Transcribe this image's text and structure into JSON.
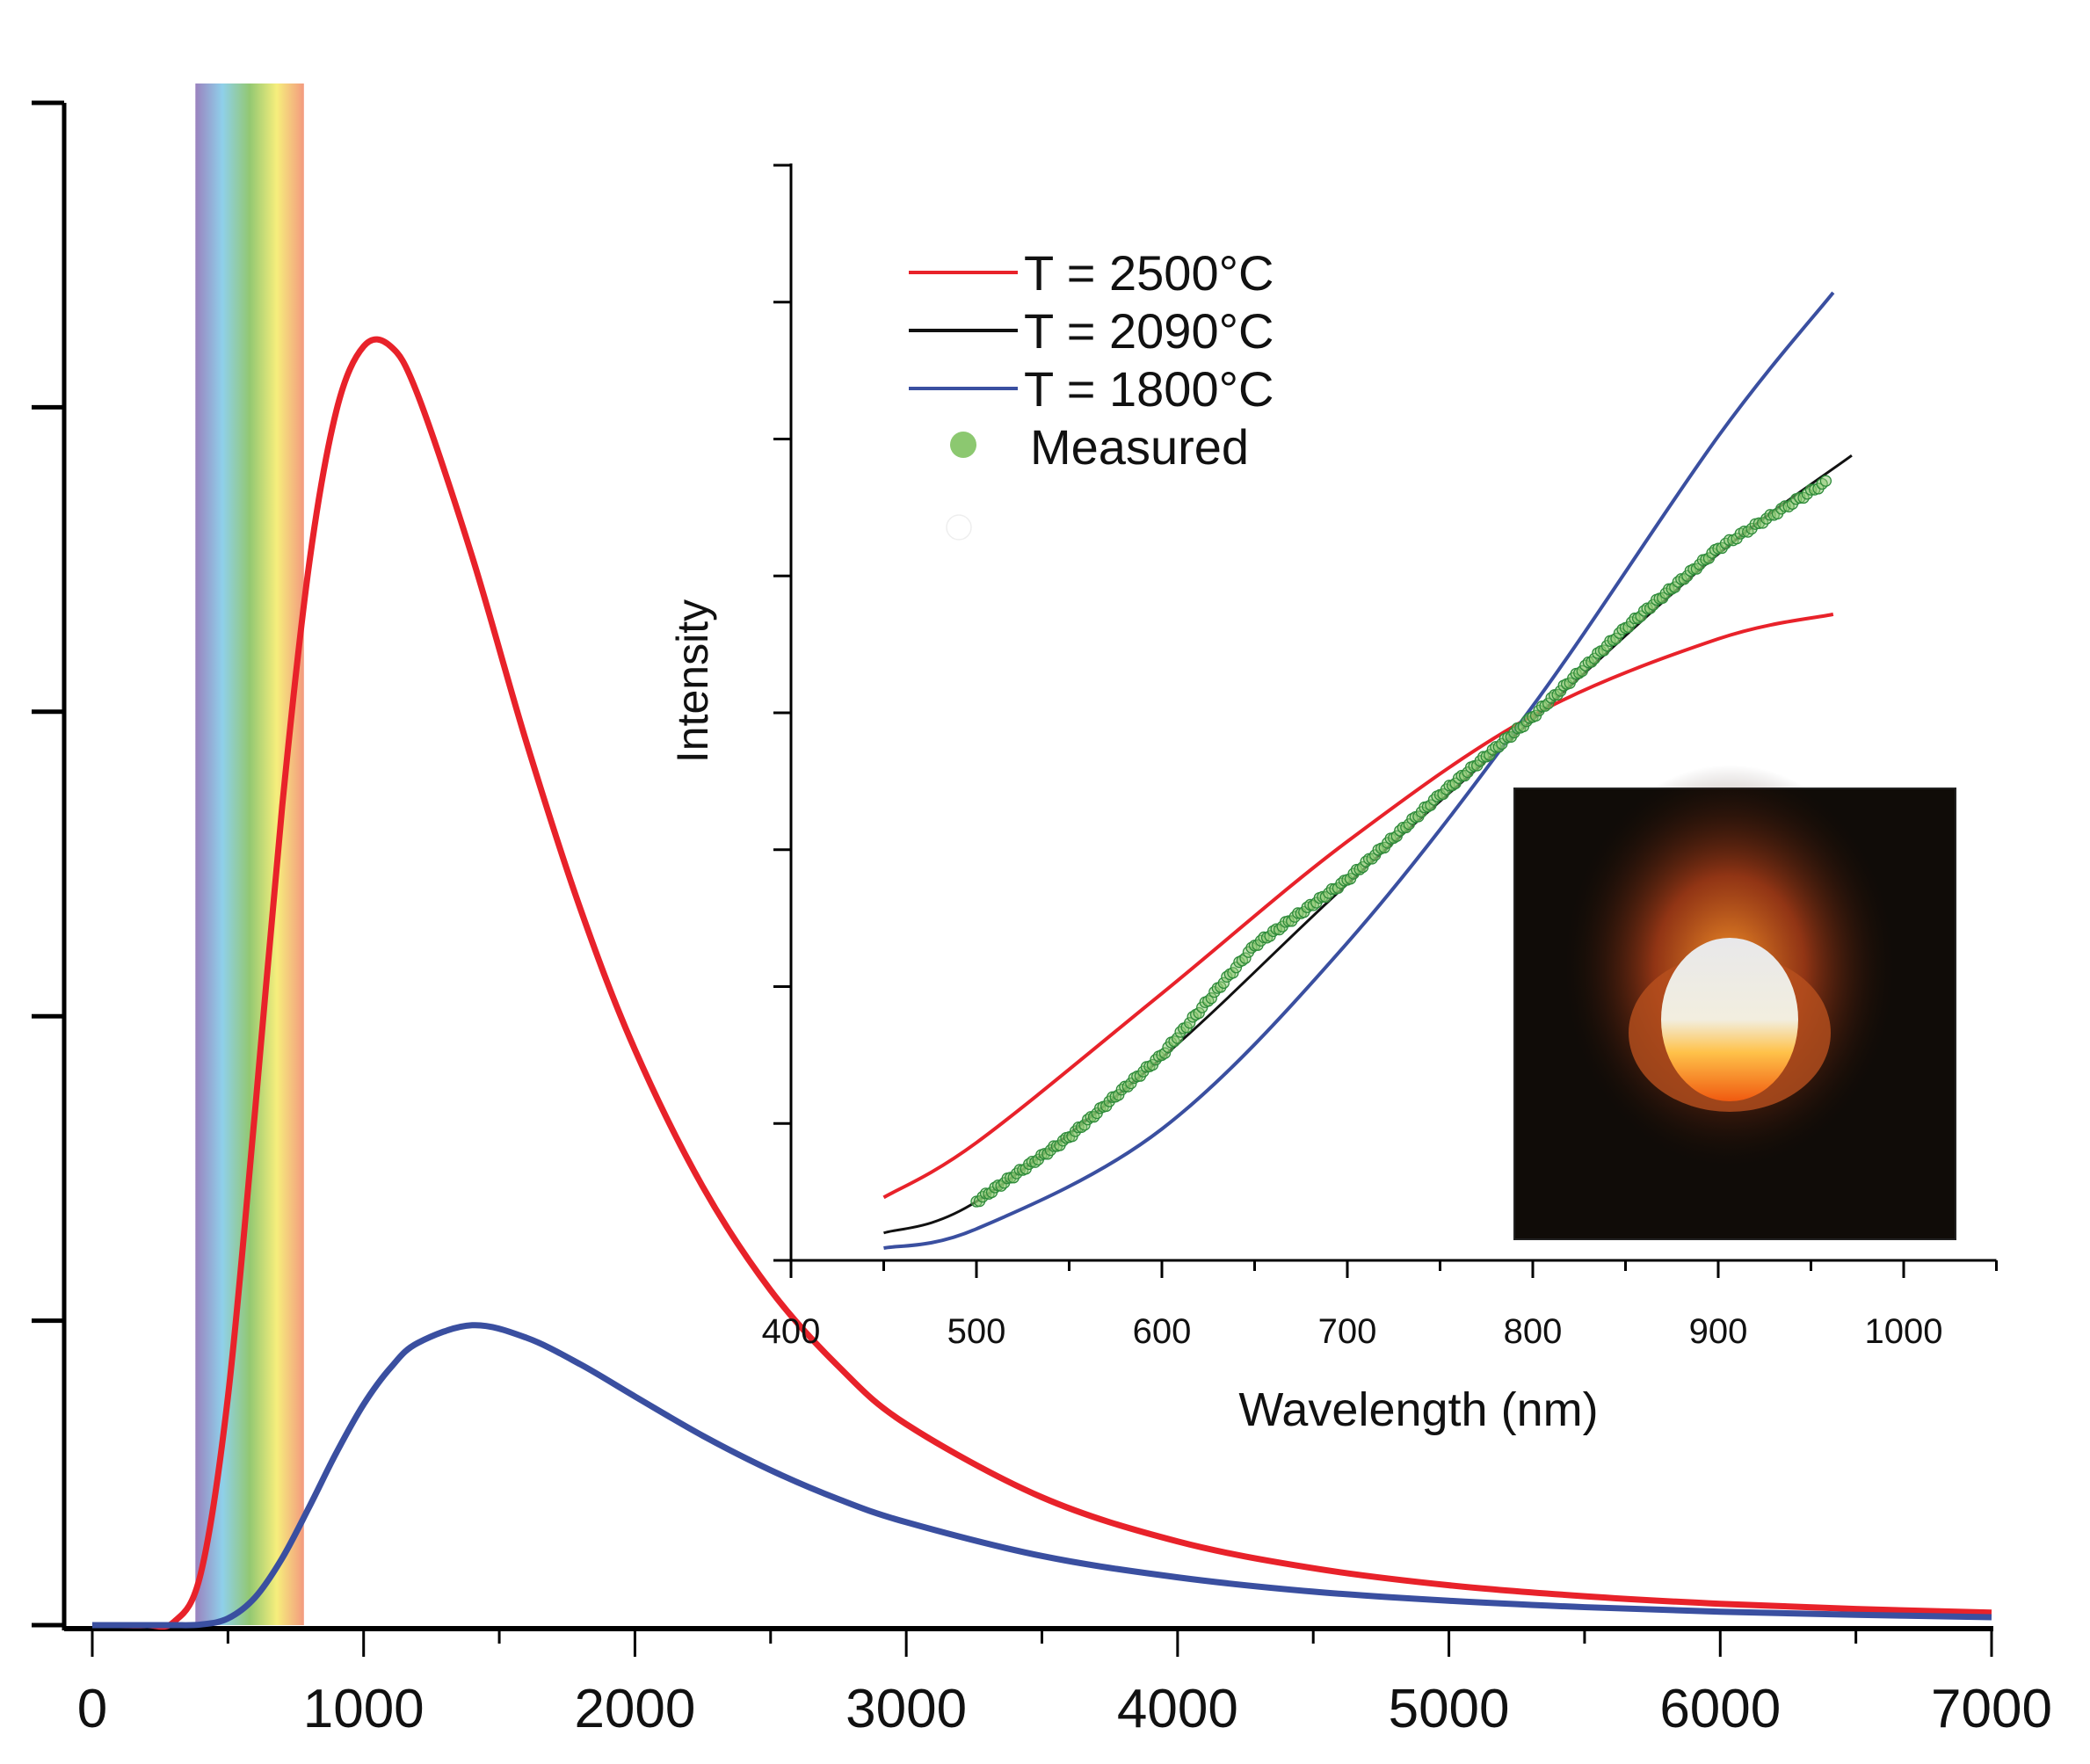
{
  "chart_data": [
    {
      "type": "line",
      "title": "",
      "xlabel": "",
      "ylabel": "",
      "xlim": [
        0,
        7000
      ],
      "ylim": [
        0,
        5
      ],
      "x_ticks": [
        0,
        1000,
        2000,
        3000,
        4000,
        5000,
        6000,
        7000
      ],
      "x_tick_labels": [
        "0",
        "1000",
        "2000",
        "3000",
        "4000",
        "5000",
        "6000",
        "7000"
      ],
      "y_tick_labels_shown": false,
      "visible_band": {
        "range": [
          380,
          780
        ],
        "colors": [
          "#9a82bf",
          "#8fd0ea",
          "#93c872",
          "#f6ee7c",
          "#f39a7f"
        ]
      },
      "series": [
        {
          "color": "#e8222a",
          "x": [
            0,
            100,
            200,
            300,
            400,
            500,
            600,
            700,
            800,
            900,
            1000,
            1100,
            1200,
            1400,
            1600,
            1800,
            2000,
            2250,
            2500,
            2750,
            3000,
            3500,
            4000,
            4500,
            5000,
            5500,
            6000,
            6500,
            7000
          ],
          "y": [
            0,
            0,
            0,
            0.01,
            0.17,
            0.75,
            1.69,
            2.69,
            3.49,
            3.99,
            4.2,
            4.2,
            4.04,
            3.51,
            2.9,
            2.35,
            1.89,
            1.44,
            1.1,
            0.85,
            0.66,
            0.42,
            0.275,
            0.187,
            0.131,
            0.095,
            0.07,
            0.053,
            0.041
          ]
        },
        {
          "color": "#3a4fa0",
          "x": [
            0,
            100,
            200,
            300,
            400,
            500,
            600,
            700,
            800,
            900,
            1000,
            1100,
            1200,
            1400,
            1600,
            1800,
            2000,
            2250,
            2500,
            2750,
            3000,
            3500,
            4000,
            4500,
            5000,
            5500,
            6000,
            6500,
            7000
          ],
          "y": [
            0,
            0,
            0,
            0,
            0.002,
            0.022,
            0.091,
            0.22,
            0.389,
            0.567,
            0.725,
            0.846,
            0.927,
            0.985,
            0.944,
            0.856,
            0.751,
            0.622,
            0.509,
            0.414,
            0.338,
            0.227,
            0.157,
            0.11,
            0.08,
            0.059,
            0.044,
            0.034,
            0.026
          ]
        }
      ]
    },
    {
      "type": "line",
      "title": "",
      "xlabel": "Wavelength (nm)",
      "ylabel": "Intensity",
      "xlim": [
        400,
        1050
      ],
      "ylim": [
        0,
        8
      ],
      "x_ticks": [
        400,
        500,
        600,
        700,
        800,
        900,
        1000
      ],
      "x_tick_labels": [
        "400",
        "500",
        "600",
        "700",
        "800",
        "900",
        "1000"
      ],
      "y_tick_labels_shown": false,
      "legend_position": "top-left",
      "series": [
        {
          "name": "T = 2500°C",
          "color": "#e8222a",
          "x": [
            450,
            500,
            600,
            700,
            800,
            900,
            962
          ],
          "y": [
            0.46,
            0.86,
            1.95,
            3.06,
            3.98,
            4.54,
            4.72
          ]
        },
        {
          "name": "T = 2090°C",
          "color": "#111111",
          "x": [
            450,
            500,
            600,
            700,
            800,
            900,
            972
          ],
          "y": [
            0.2,
            0.43,
            1.48,
            2.75,
            3.95,
            5.16,
            5.88
          ]
        },
        {
          "name": "T = 1800°C",
          "color": "#3a4fa0",
          "x": [
            450,
            500,
            600,
            700,
            800,
            900,
            962
          ],
          "y": [
            0.09,
            0.23,
            0.96,
            2.32,
            4.05,
            6.02,
            7.07
          ]
        },
        {
          "name": "Measured",
          "type": "scatter",
          "color": "#8cc870",
          "edge_color": "#2e8b3a",
          "x": [
            500,
            550,
            600,
            650,
            700,
            750,
            800,
            850,
            900,
            960
          ],
          "y": [
            0.43,
            0.9,
            1.5,
            2.3,
            2.78,
            3.4,
            3.97,
            4.62,
            5.2,
            5.7
          ]
        }
      ],
      "image_inset": {
        "content": "photo of glowing incandescent sphere on dark background"
      }
    }
  ]
}
